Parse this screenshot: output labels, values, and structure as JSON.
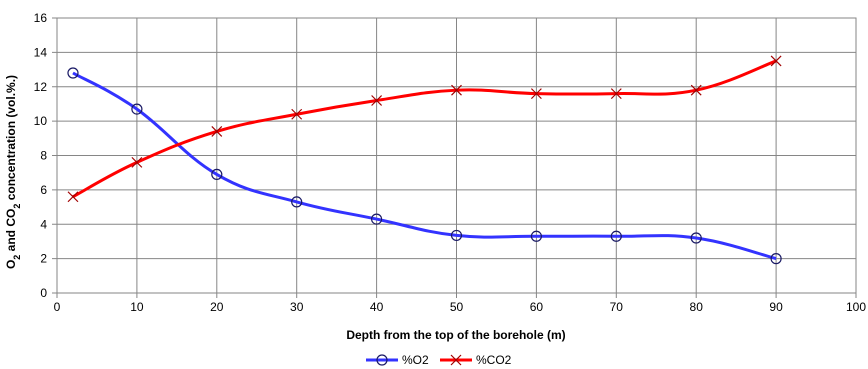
{
  "chart_data": {
    "type": "line",
    "title": "",
    "xlabel": "Depth from the top of the borehole (m)",
    "ylabel_parts": [
      "O",
      "2",
      " and CO",
      "2",
      " concentration  (vol.%.)"
    ],
    "xlim": [
      0,
      100
    ],
    "ylim": [
      0,
      16
    ],
    "x_ticks": [
      "0",
      "10",
      "20",
      "30",
      "40",
      "50",
      "60",
      "70",
      "80",
      "90",
      "100"
    ],
    "y_ticks": [
      "0",
      "2",
      "4",
      "6",
      "8",
      "10",
      "12",
      "14",
      "16"
    ],
    "grid": true,
    "legend_position": "bottom",
    "series": [
      {
        "name": "%O2",
        "color": "#3333ff",
        "marker": "circle",
        "x": [
          2,
          10,
          20,
          30,
          40,
          50,
          60,
          70,
          80,
          90
        ],
        "values": [
          12.8,
          10.7,
          6.9,
          5.3,
          4.3,
          3.35,
          3.3,
          3.3,
          3.2,
          2.0
        ]
      },
      {
        "name": "%CO2",
        "color": "#ff0000",
        "marker": "x",
        "x": [
          2,
          10,
          20,
          30,
          40,
          50,
          60,
          70,
          80,
          90
        ],
        "values": [
          5.6,
          7.6,
          9.4,
          10.4,
          11.2,
          11.8,
          11.6,
          11.6,
          11.8,
          13.5
        ]
      }
    ]
  }
}
